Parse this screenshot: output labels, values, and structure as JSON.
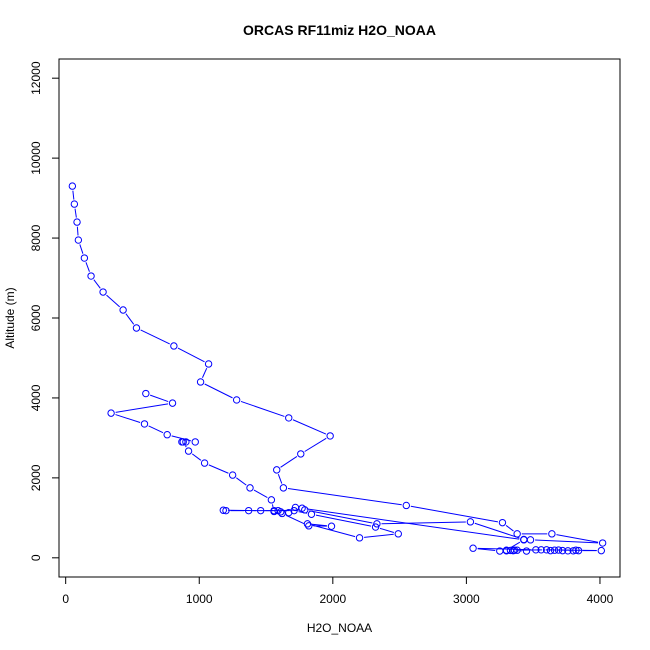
{
  "chart_data": {
    "type": "line",
    "title": "ORCAS RF11miz H2O_NOAA",
    "xlabel": "H2O_NOAA",
    "ylabel": "Altitude (m)",
    "xlim": [
      0,
      4000
    ],
    "ylim": [
      0,
      12000
    ],
    "x_ticks": [
      0,
      1000,
      2000,
      3000,
      4000
    ],
    "y_ticks": [
      0,
      2000,
      4000,
      6000,
      8000,
      10000,
      12000
    ],
    "grid": false,
    "legend": "none",
    "color": "#0000ff",
    "marker": "open-circle",
    "series": [
      {
        "x": [
          50,
          65,
          85,
          95,
          140,
          190,
          280,
          430,
          530,
          810,
          1070,
          1010,
          1280,
          1670,
          1980,
          1760,
          1580,
          1630,
          2550,
          3270,
          3380,
          3640,
          4020,
          3480,
          3430,
          3030,
          2330,
          1790,
          1590,
          1460,
          1180,
          1200,
          1370,
          1710,
          1840,
          2320,
          2490,
          2200,
          1810,
          1990,
          1820,
          1620,
          1560,
          1540,
          1380,
          1250,
          1040,
          920,
          880,
          870,
          900,
          970,
          760,
          590,
          340,
          800,
          600
        ],
        "y": [
          9300,
          8850,
          8400,
          7950,
          7500,
          7050,
          6650,
          6200,
          5750,
          5300,
          4850,
          4400,
          3950,
          3500,
          3050,
          2600,
          2200,
          1750,
          1310,
          880,
          600,
          600,
          370,
          450,
          460,
          900,
          850,
          1200,
          1180,
          1180,
          1190,
          1180,
          1180,
          1180,
          1090,
          770,
          600,
          500,
          850,
          790,
          800,
          1110,
          1160,
          1450,
          1750,
          2070,
          2370,
          2670,
          2900,
          2900,
          2900,
          2900,
          3080,
          3350,
          3620,
          3870,
          4110
        ]
      },
      {
        "x": [
          1560,
          1610,
          1670,
          1720,
          1770,
          3430,
          3300,
          3350,
          3450,
          3520,
          3050,
          3250,
          3300,
          3330,
          3360,
          3380,
          3600,
          3630,
          3660,
          3690,
          3720,
          3760,
          3800,
          3840,
          4010,
          3560,
          3820
        ],
        "y": [
          1180,
          1150,
          1130,
          1260,
          1240,
          450,
          190,
          180,
          170,
          200,
          240,
          170,
          175,
          185,
          190,
          190,
          200,
          180,
          190,
          195,
          180,
          175,
          175,
          180,
          180,
          200,
          190
        ]
      }
    ]
  }
}
